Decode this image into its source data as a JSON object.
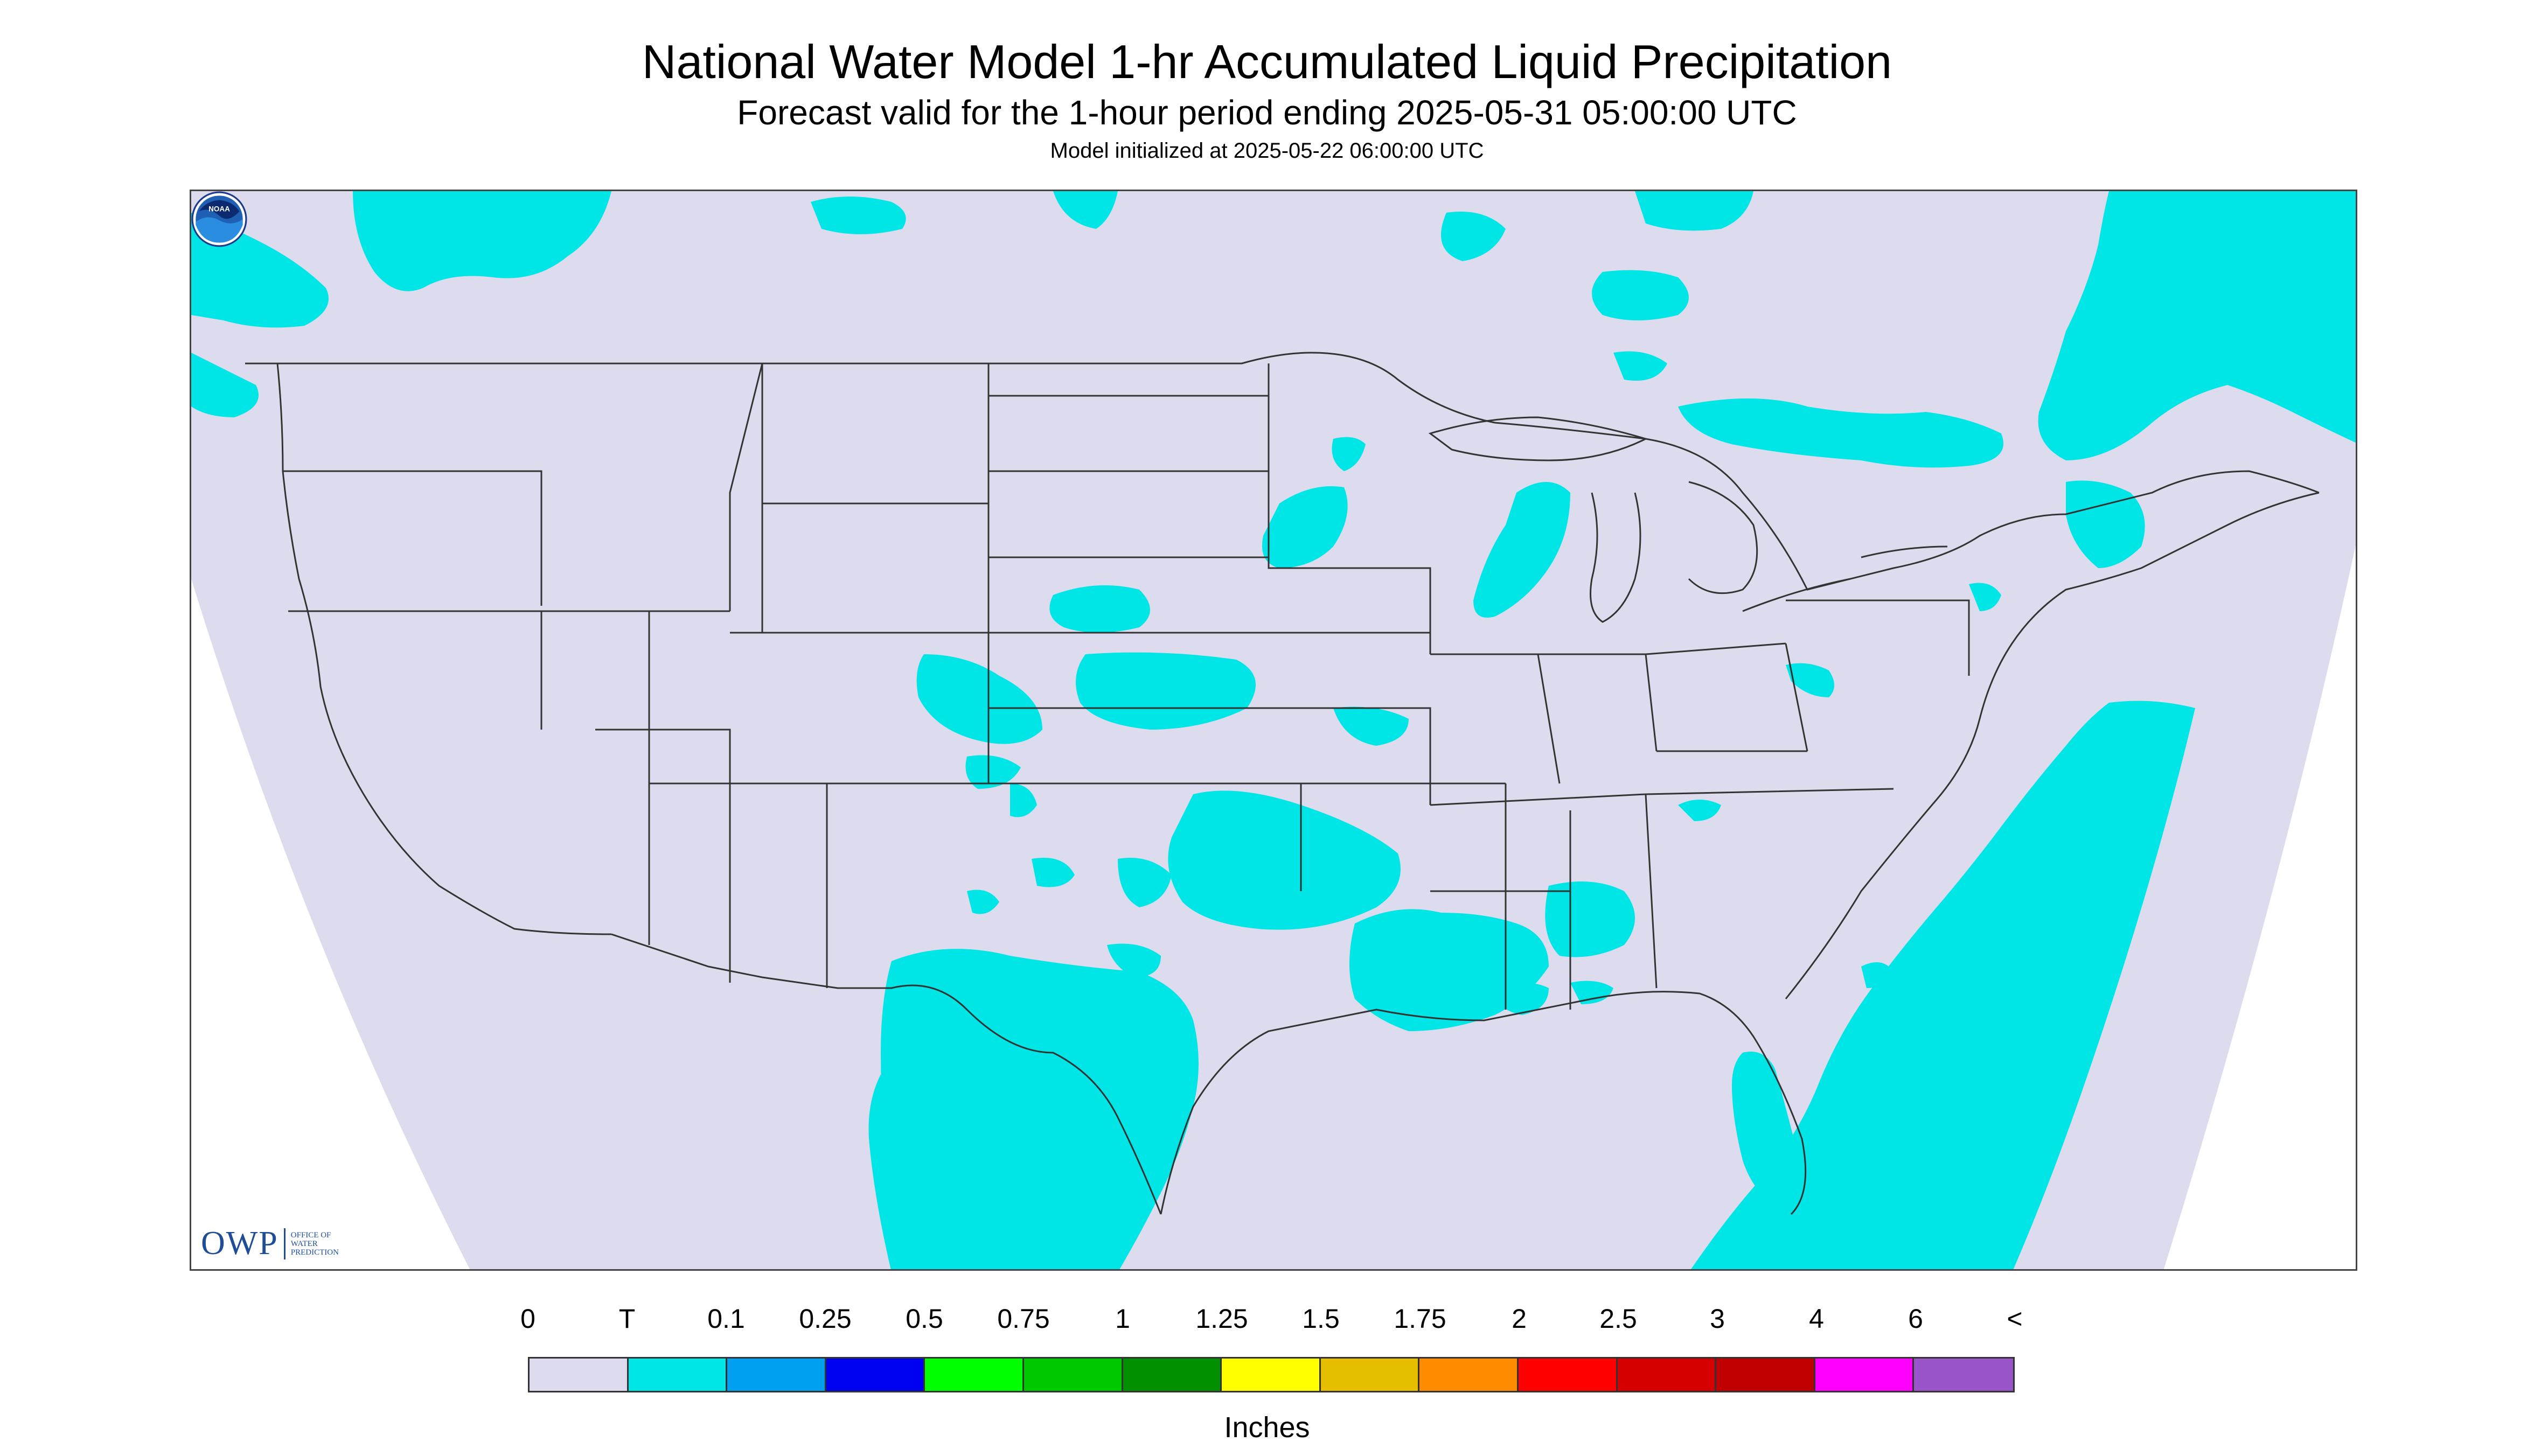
{
  "header": {
    "title": "National Water Model 1-hr Accumulated Liquid Precipitation",
    "subtitle": "Forecast valid for the 1-hour period ending 2025-05-31 05:00:00 UTC",
    "init_line": "Model initialized at 2025-05-22 06:00:00 UTC"
  },
  "logos": {
    "owp_mark": "OWP",
    "owp_text_1": "OFFICE OF",
    "owp_text_2": "WATER",
    "owp_text_3": "PREDICTION",
    "noaa_text": "NOAA"
  },
  "map": {
    "background_color": "#dcdcee",
    "precip_color": "#00e5e5",
    "outside_color": "#ffffff",
    "boundary_color": "#333333"
  },
  "legend": {
    "labels": [
      "0",
      "T",
      "0.1",
      "0.25",
      "0.5",
      "0.75",
      "1",
      "1.25",
      "1.5",
      "1.75",
      "2",
      "2.5",
      "3",
      "4",
      "6",
      "<"
    ],
    "colors": [
      "#dcdcee",
      "#00e5e5",
      "#00a0f0",
      "#0000f0",
      "#00ff00",
      "#00c800",
      "#009000",
      "#ffff00",
      "#e6be00",
      "#ff8c00",
      "#ff0000",
      "#d60000",
      "#c00000",
      "#ff00ff",
      "#9955c9"
    ],
    "units": "Inches"
  }
}
